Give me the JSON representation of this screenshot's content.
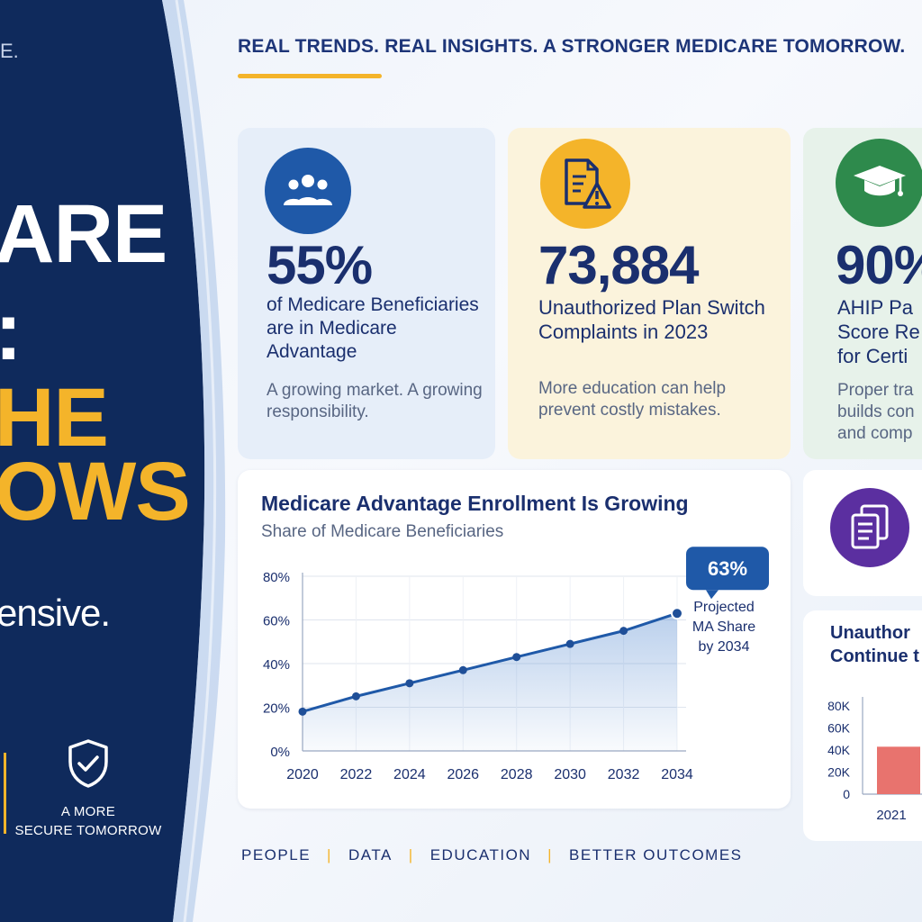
{
  "header": {
    "tagline": "REAL TRENDS. REAL INSIGHTS. A STRONGER MEDICARE TOMORROW."
  },
  "left_panel": {
    "corner_mark": "E.",
    "line1": "ARE",
    "line2": ":",
    "line3": "HE",
    "line4": "OWS",
    "line5": "ensive.",
    "secure_label_1": "A MORE",
    "secure_label_2": "SECURE TOMORROW",
    "icons": {
      "secure": "shield-check-icon"
    }
  },
  "stat_cards": [
    {
      "icon": "people-group-icon",
      "value": "55%",
      "desc": "of Medicare Beneficiaries are in Medicare Advantage",
      "note": "A growing market. A growing responsibility."
    },
    {
      "icon": "document-warning-icon",
      "value": "73,884",
      "desc": "Unauthorized Plan Switch Complaints in 2023",
      "note": "More education can help prevent costly mistakes."
    },
    {
      "icon": "graduation-cap-icon",
      "value": "90%",
      "desc_line1": "AHIP Pa",
      "desc_line2": "Score Re",
      "desc_line3": "for Certi",
      "note_line1": "Proper tra",
      "note_line2": "builds con",
      "note_line3": "and comp"
    }
  ],
  "right_cards": {
    "docs_icon": "documents-icon",
    "unauth_title_1": "Unauthor",
    "unauth_title_2": "Continue t"
  },
  "chart_data": [
    {
      "type": "area",
      "title": "Medicare Advantage Enrollment Is Growing",
      "subtitle": "Share of Medicare Beneficiaries",
      "x": [
        "2020",
        "2022",
        "2024",
        "2026",
        "2028",
        "2030",
        "2032",
        "2034"
      ],
      "y": [
        18,
        25,
        31,
        37,
        43,
        49,
        55,
        63
      ],
      "y_unit": "%",
      "ylim": [
        0,
        80
      ],
      "y_ticks": [
        "0%",
        "20%",
        "40%",
        "60%",
        "80%"
      ],
      "callout_value": "63%",
      "callout_line1": "Projected",
      "callout_line2": "MA Share",
      "callout_line3": "by 2034",
      "grid": true,
      "color": "#1f59a8"
    },
    {
      "type": "bar",
      "categories": [
        "2021"
      ],
      "values": [
        43000
      ],
      "ylim": [
        0,
        80000
      ],
      "y_ticks": [
        "0",
        "20K",
        "40K",
        "60K",
        "80K"
      ],
      "color": "#e8736e"
    }
  ],
  "footer": {
    "items": [
      "PEOPLE",
      "DATA",
      "EDUCATION",
      "BETTER OUTCOMES"
    ]
  },
  "colors": {
    "navy": "#0f2a5c",
    "gold": "#f4b42a",
    "blue": "#1f59a8",
    "green": "#2e8a4c",
    "purple": "#5b2fa0"
  }
}
